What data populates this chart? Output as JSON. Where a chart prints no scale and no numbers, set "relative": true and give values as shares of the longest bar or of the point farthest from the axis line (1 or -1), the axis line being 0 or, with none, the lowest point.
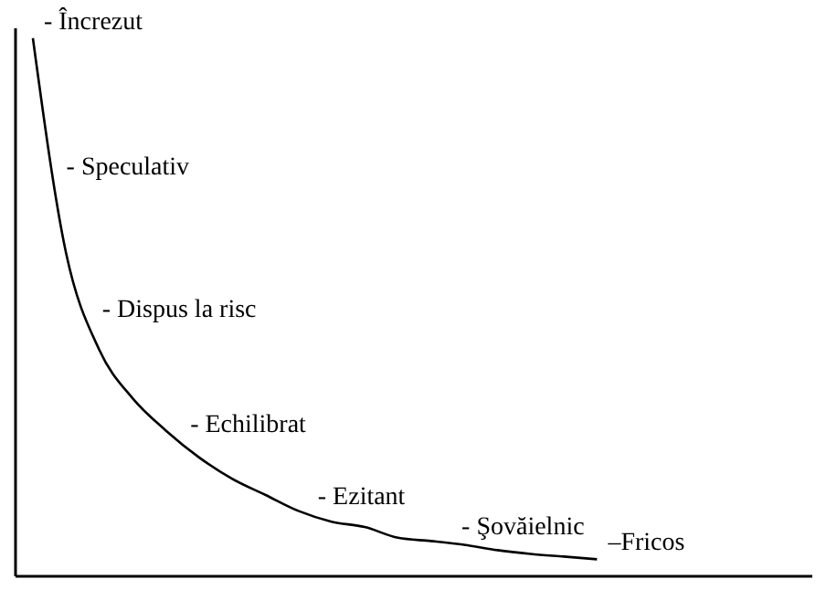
{
  "chart_data": {
    "type": "line",
    "relative": true,
    "categories": [
      null,
      null,
      null,
      null,
      null,
      null,
      null,
      null,
      null,
      null,
      null,
      null,
      null,
      null,
      null,
      null,
      null,
      null
    ],
    "series": [
      {
        "color": "#000000",
        "values": [
          1,
          0.6,
          0.42,
          0.33,
          0.27,
          0.22,
          0.18,
          0.15,
          0.12,
          0.1,
          0.09,
          0.07,
          0.064,
          0.057,
          0.047,
          0.04,
          0.035,
          0.03
        ]
      }
    ],
    "annotations": [
      "- Încrezut",
      "- Speculativ",
      "- Dispus la risc",
      "- Echilibrat",
      "- Ezitant",
      "- Şovăielnic",
      "–Fricos"
    ],
    "marker": "none",
    "line_style": "solid"
  }
}
